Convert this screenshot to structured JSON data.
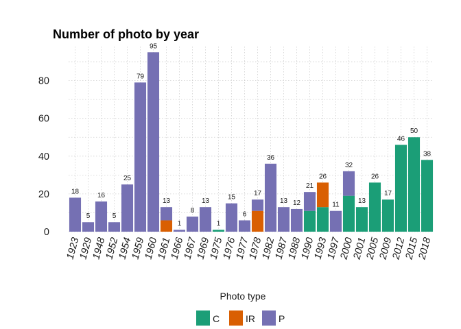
{
  "chart_data": {
    "type": "bar",
    "stacked": true,
    "title": "Number of photo by year",
    "xlabel": "",
    "ylabel": "",
    "ylim": [
      0,
      98
    ],
    "yticks": [
      0,
      20,
      40,
      60,
      80
    ],
    "grid": true,
    "categories": [
      "1923",
      "1929",
      "1948",
      "1952",
      "1954",
      "1959",
      "1960",
      "1961",
      "1966",
      "1967",
      "1969",
      "1975",
      "1976",
      "1977",
      "1978",
      "1982",
      "1987",
      "1988",
      "1990",
      "1993",
      "1997",
      "2000",
      "2001",
      "2005",
      "2009",
      "2012",
      "2015",
      "2018"
    ],
    "totals": [
      18,
      5,
      16,
      5,
      25,
      79,
      95,
      13,
      1,
      8,
      13,
      1,
      15,
      6,
      17,
      36,
      13,
      12,
      21,
      26,
      11,
      32,
      13,
      26,
      17,
      46,
      50,
      38
    ],
    "series": [
      {
        "name": "C",
        "color": "#1b9e77",
        "values": [
          0,
          0,
          0,
          0,
          0,
          0,
          0,
          0,
          0,
          0,
          0,
          1,
          0,
          0,
          0,
          0,
          0,
          0,
          11,
          13,
          0,
          19,
          13,
          26,
          17,
          46,
          50,
          38
        ]
      },
      {
        "name": "IR",
        "color": "#d95f02",
        "values": [
          0,
          0,
          0,
          0,
          0,
          0,
          0,
          6,
          0,
          0,
          0,
          0,
          0,
          0,
          11,
          0,
          0,
          0,
          0,
          13,
          0,
          0,
          0,
          0,
          0,
          0,
          0,
          0
        ]
      },
      {
        "name": "P",
        "color": "#7570b3",
        "values": [
          18,
          5,
          16,
          5,
          25,
          79,
          95,
          7,
          1,
          8,
          13,
          0,
          15,
          6,
          6,
          36,
          13,
          12,
          10,
          0,
          11,
          13,
          0,
          0,
          0,
          0,
          0,
          0
        ]
      }
    ],
    "legend": {
      "title": "Photo type",
      "position": "bottom"
    }
  }
}
